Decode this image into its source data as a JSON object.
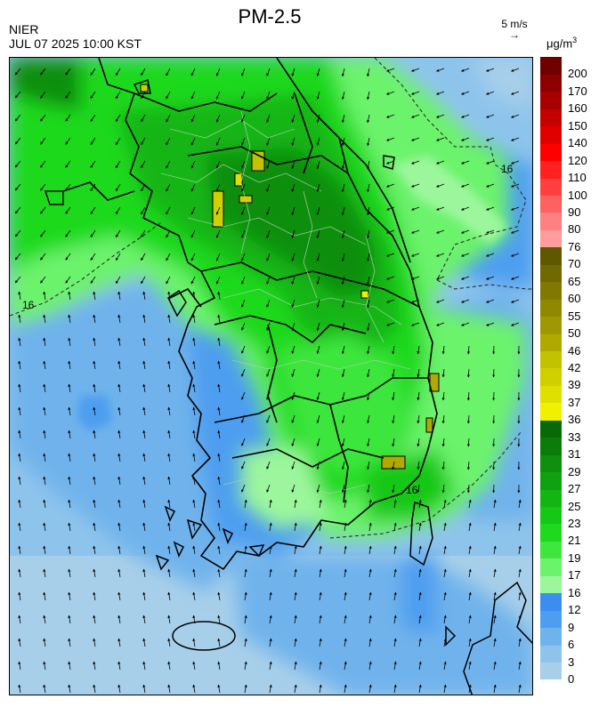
{
  "header": {
    "title": "PM-2.5",
    "agency": "NIER",
    "timestamp": "JUL 07 2025 10:00 KST",
    "wind_scale_label": "5 m/s",
    "wind_scale_arrow": "→",
    "unit_prefix": "μg/m",
    "unit_exp": "3"
  },
  "map": {
    "contour_labels": [
      "16",
      "16",
      "16"
    ],
    "background_color": "#6cb0e8"
  },
  "legend": {
    "bins": [
      {
        "label": "0",
        "color": "#a7cfea"
      },
      {
        "label": "3",
        "color": "#8ec4ec"
      },
      {
        "label": "6",
        "color": "#6fb3ec"
      },
      {
        "label": "9",
        "color": "#4d9ef0"
      },
      {
        "label": "12",
        "color": "#3a8ef0"
      },
      {
        "label": "16",
        "color": "#9cf79c"
      },
      {
        "label": "17",
        "color": "#6cf36c"
      },
      {
        "label": "19",
        "color": "#3ee63e"
      },
      {
        "label": "21",
        "color": "#1ed91e"
      },
      {
        "label": "23",
        "color": "#15c815"
      },
      {
        "label": "25",
        "color": "#12b512"
      },
      {
        "label": "27",
        "color": "#10a110"
      },
      {
        "label": "29",
        "color": "#0e8f0e"
      },
      {
        "label": "31",
        "color": "#0b7c0b"
      },
      {
        "label": "33",
        "color": "#076a07"
      },
      {
        "label": "36",
        "color": "#f0f000"
      },
      {
        "label": "37",
        "color": "#e0e000"
      },
      {
        "label": "39",
        "color": "#d0d000"
      },
      {
        "label": "42",
        "color": "#c2c200"
      },
      {
        "label": "46",
        "color": "#b0aa00"
      },
      {
        "label": "50",
        "color": "#a09800"
      },
      {
        "label": "55",
        "color": "#908800"
      },
      {
        "label": "60",
        "color": "#807800"
      },
      {
        "label": "65",
        "color": "#706800"
      },
      {
        "label": "70",
        "color": "#605800"
      },
      {
        "label": "76",
        "color": "#ff9c9c"
      },
      {
        "label": "80",
        "color": "#ff8080"
      },
      {
        "label": "90",
        "color": "#ff6060"
      },
      {
        "label": "100",
        "color": "#ff4040"
      },
      {
        "label": "110",
        "color": "#ff2020"
      },
      {
        "label": "120",
        "color": "#ff0000"
      },
      {
        "label": "140",
        "color": "#e00000"
      },
      {
        "label": "150",
        "color": "#c40000"
      },
      {
        "label": "160",
        "color": "#a80000"
      },
      {
        "label": "170",
        "color": "#8c0000"
      },
      {
        "label": "200",
        "color": "#700000"
      }
    ]
  }
}
